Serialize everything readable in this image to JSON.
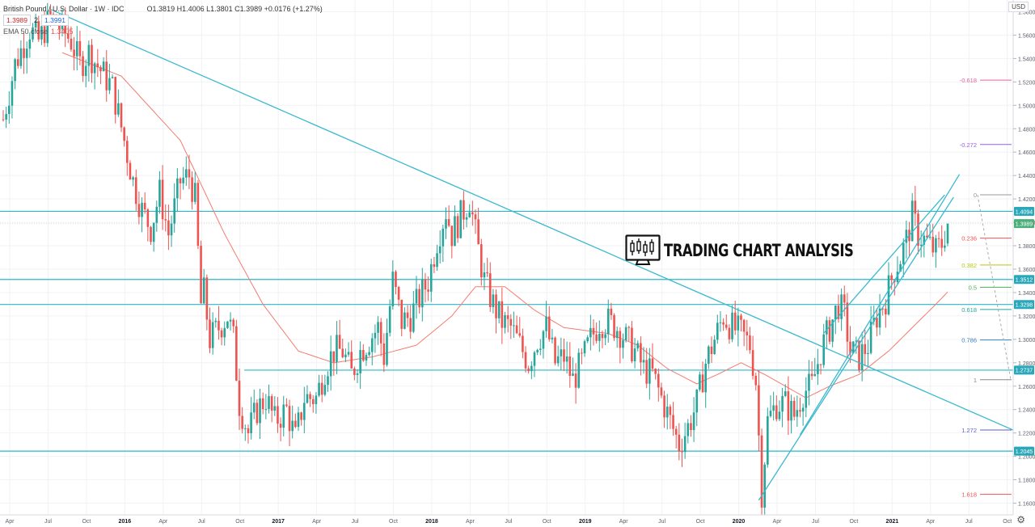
{
  "header": {
    "symbol_title": "British Pound / U.S. Dollar · 1W · IDC",
    "bid": "1.3989",
    "spread": "2",
    "ask": "1.3991",
    "ohlc": "O1.3819 H1.4006 L1.3801 C1.3989 +0.0176 (+1.27%)",
    "ema_label": "EMA 50 close",
    "ema_value": "1.3405",
    "currency": "USD"
  },
  "watermark": {
    "text": "TRADING CHART ANALYSIS"
  },
  "colors": {
    "up": "#26a69a",
    "down": "#ef5350",
    "ema": "#f47c6f",
    "trend": "#3bb9cf",
    "level": "#2ab7c9",
    "tag_bg": "#2aa8ba"
  },
  "chart_data": {
    "type": "candlestick",
    "title": "British Pound / U.S. Dollar",
    "timeframe": "1W",
    "ylim": [
      1.15,
      1.59
    ],
    "y_ticks": [
      "1.5800",
      "1.5600",
      "1.5400",
      "1.5200",
      "1.5000",
      "1.4800",
      "1.4600",
      "1.4400",
      "1.4200",
      "1.4000",
      "1.3800",
      "1.3600",
      "1.3400",
      "1.3200",
      "1.3000",
      "1.2800",
      "1.2600",
      "1.2400",
      "1.2200",
      "1.2000",
      "1.1800",
      "1.1600"
    ],
    "x_ticks": [
      {
        "label": "Apr",
        "i": 0
      },
      {
        "label": "Jul",
        "i": 13
      },
      {
        "label": "Oct",
        "i": 26
      },
      {
        "label": "2016",
        "i": 39
      },
      {
        "label": "Apr",
        "i": 52
      },
      {
        "label": "Jul",
        "i": 65
      },
      {
        "label": "Oct",
        "i": 78
      },
      {
        "label": "2017",
        "i": 91
      },
      {
        "label": "Apr",
        "i": 104
      },
      {
        "label": "Jul",
        "i": 117
      },
      {
        "label": "Oct",
        "i": 130
      },
      {
        "label": "2018",
        "i": 143
      },
      {
        "label": "Apr",
        "i": 156
      },
      {
        "label": "Jul",
        "i": 169
      },
      {
        "label": "Oct",
        "i": 182
      },
      {
        "label": "2019",
        "i": 195
      },
      {
        "label": "Apr",
        "i": 208
      },
      {
        "label": "Jul",
        "i": 221
      },
      {
        "label": "Oct",
        "i": 234
      },
      {
        "label": "2020",
        "i": 247
      },
      {
        "label": "Apr",
        "i": 260
      },
      {
        "label": "Jul",
        "i": 273
      },
      {
        "label": "Oct",
        "i": 286
      },
      {
        "label": "2021",
        "i": 299
      },
      {
        "label": "Apr",
        "i": 312
      },
      {
        "label": "Jul",
        "i": 325
      },
      {
        "label": "Oct",
        "i": 338
      }
    ],
    "bar_count": 351,
    "path_anchors": [
      [
        0,
        1.488
      ],
      [
        4,
        1.535
      ],
      [
        9,
        1.565
      ],
      [
        12,
        1.555
      ],
      [
        16,
        1.575
      ],
      [
        20,
        1.565
      ],
      [
        23,
        1.555
      ],
      [
        26,
        1.535
      ],
      [
        29,
        1.545
      ],
      [
        33,
        1.53
      ],
      [
        37,
        1.515
      ],
      [
        41,
        1.47
      ],
      [
        44,
        1.435
      ],
      [
        47,
        1.41
      ],
      [
        50,
        1.395
      ],
      [
        53,
        1.425
      ],
      [
        56,
        1.39
      ],
      [
        60,
        1.435
      ],
      [
        63,
        1.44
      ],
      [
        65,
        1.42
      ],
      [
        67,
        1.33
      ],
      [
        68,
        1.34
      ],
      [
        70,
        1.3
      ],
      [
        73,
        1.31
      ],
      [
        76,
        1.32
      ],
      [
        78,
        1.3
      ],
      [
        80,
        1.245
      ],
      [
        83,
        1.22
      ],
      [
        86,
        1.24
      ],
      [
        89,
        1.25
      ],
      [
        92,
        1.23
      ],
      [
        96,
        1.24
      ],
      [
        99,
        1.215
      ],
      [
        102,
        1.25
      ],
      [
        106,
        1.25
      ],
      [
        109,
        1.275
      ],
      [
        112,
        1.29
      ],
      [
        115,
        1.29
      ],
      [
        118,
        1.27
      ],
      [
        121,
        1.29
      ],
      [
        124,
        1.3
      ],
      [
        127,
        1.31
      ],
      [
        129,
        1.285
      ],
      [
        132,
        1.35
      ],
      [
        135,
        1.315
      ],
      [
        138,
        1.32
      ],
      [
        141,
        1.335
      ],
      [
        144,
        1.35
      ],
      [
        147,
        1.385
      ],
      [
        150,
        1.41
      ],
      [
        152,
        1.39
      ],
      [
        155,
        1.405
      ],
      [
        158,
        1.42
      ],
      [
        160,
        1.39
      ],
      [
        163,
        1.35
      ],
      [
        166,
        1.33
      ],
      [
        169,
        1.315
      ],
      [
        172,
        1.31
      ],
      [
        175,
        1.295
      ],
      [
        178,
        1.28
      ],
      [
        181,
        1.3
      ],
      [
        184,
        1.31
      ],
      [
        187,
        1.28
      ],
      [
        190,
        1.285
      ],
      [
        193,
        1.265
      ],
      [
        196,
        1.28
      ],
      [
        199,
        1.3
      ],
      [
        202,
        1.315
      ],
      [
        205,
        1.315
      ],
      [
        208,
        1.31
      ],
      [
        211,
        1.3
      ],
      [
        214,
        1.29
      ],
      [
        217,
        1.275
      ],
      [
        220,
        1.27
      ],
      [
        223,
        1.25
      ],
      [
        226,
        1.23
      ],
      [
        229,
        1.21
      ],
      [
        232,
        1.225
      ],
      [
        235,
        1.245
      ],
      [
        238,
        1.28
      ],
      [
        241,
        1.3
      ],
      [
        244,
        1.32
      ],
      [
        247,
        1.31
      ],
      [
        250,
        1.305
      ],
      [
        253,
        1.295
      ],
      [
        255,
        1.265
      ],
      [
        257,
        1.17
      ],
      [
        259,
        1.23
      ],
      [
        262,
        1.245
      ],
      [
        265,
        1.245
      ],
      [
        268,
        1.235
      ],
      [
        271,
        1.255
      ],
      [
        274,
        1.26
      ],
      [
        277,
        1.29
      ],
      [
        280,
        1.31
      ],
      [
        283,
        1.33
      ],
      [
        285,
        1.32
      ],
      [
        287,
        1.29
      ],
      [
        290,
        1.285
      ],
      [
        293,
        1.295
      ],
      [
        296,
        1.32
      ],
      [
        299,
        1.335
      ],
      [
        302,
        1.36
      ],
      [
        304,
        1.37
      ],
      [
        306,
        1.385
      ],
      [
        308,
        1.405
      ],
      [
        310,
        1.39
      ],
      [
        312,
        1.385
      ],
      [
        314,
        1.38
      ],
      [
        316,
        1.375
      ],
      [
        318,
        1.382
      ],
      [
        320,
        1.3989
      ]
    ],
    "ema_anchors": [
      [
        20,
        1.545
      ],
      [
        40,
        1.525
      ],
      [
        60,
        1.47
      ],
      [
        75,
        1.39
      ],
      [
        88,
        1.33
      ],
      [
        100,
        1.29
      ],
      [
        112,
        1.28
      ],
      [
        125,
        1.285
      ],
      [
        140,
        1.295
      ],
      [
        152,
        1.32
      ],
      [
        160,
        1.345
      ],
      [
        170,
        1.345
      ],
      [
        180,
        1.325
      ],
      [
        190,
        1.31
      ],
      [
        205,
        1.305
      ],
      [
        215,
        1.295
      ],
      [
        225,
        1.275
      ],
      [
        235,
        1.262
      ],
      [
        242,
        1.27
      ],
      [
        250,
        1.28
      ],
      [
        258,
        1.27
      ],
      [
        265,
        1.26
      ],
      [
        272,
        1.25
      ],
      [
        280,
        1.26
      ],
      [
        290,
        1.27
      ],
      [
        300,
        1.29
      ],
      [
        310,
        1.315
      ],
      [
        316,
        1.33
      ],
      [
        320,
        1.3405
      ]
    ],
    "horizontal_levels": [
      {
        "price": 1.4094,
        "tag": "1.4094"
      },
      {
        "price": 1.3512,
        "tag": "1.3512"
      },
      {
        "price": 1.3298,
        "tag": "1.3298"
      },
      {
        "price": 1.2737,
        "tag": "1.2737"
      },
      {
        "price": 1.2045,
        "tag": "1.2045"
      }
    ],
    "current_price": {
      "price": 1.3989,
      "tag": "1.3989"
    },
    "fibonacci": [
      {
        "label": "-0.618",
        "price": 1.5215,
        "color": "#e0649a"
      },
      {
        "label": "-0.272",
        "price": 1.4665,
        "color": "#9b5de5"
      },
      {
        "label": "0",
        "price": 1.4235,
        "color": "#999999"
      },
      {
        "label": "0.236",
        "price": 1.3865,
        "color": "#ef5350"
      },
      {
        "label": "0.382",
        "price": 1.3635,
        "color": "#b7c90f"
      },
      {
        "label": "0.5",
        "price": 1.3445,
        "color": "#4caf50"
      },
      {
        "label": "0.618",
        "price": 1.3255,
        "color": "#26a69a"
      },
      {
        "label": "0.786",
        "price": 1.2995,
        "color": "#3b82c4"
      },
      {
        "label": "1",
        "price": 1.2655,
        "color": "#888888"
      },
      {
        "label": "1.272",
        "price": 1.2225,
        "color": "#5e5ed6"
      },
      {
        "label": "1.618",
        "price": 1.1675,
        "color": "#ef5350"
      }
    ],
    "trendlines": [
      {
        "from": [
          16,
          1.582
        ],
        "to": [
          351,
          1.2225
        ]
      },
      {
        "from": [
          256,
          1.1625
        ],
        "to": [
          322,
          1.4215
        ]
      },
      {
        "from": [
          270,
          1.2185
        ],
        "to": [
          324,
          1.441
        ]
      },
      {
        "from": [
          278,
          1.3052
        ],
        "to": [
          319,
          1.4235
        ]
      }
    ]
  }
}
